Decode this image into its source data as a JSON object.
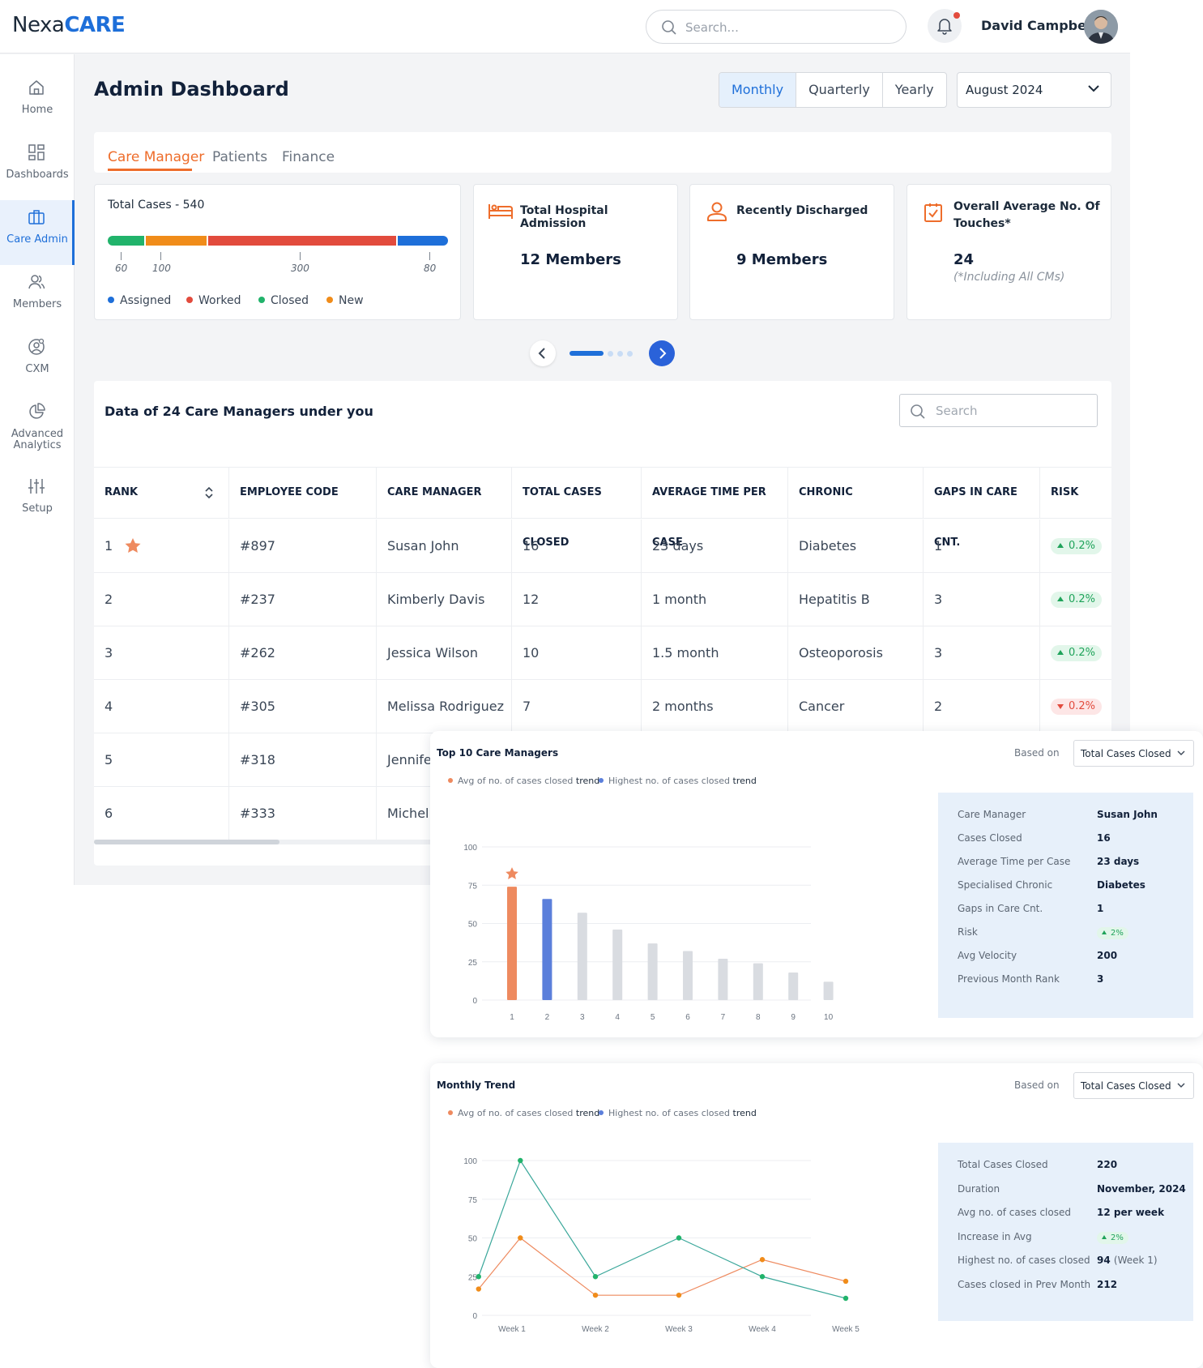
{
  "brand": {
    "part1": "Nexa",
    "part2": "CARE",
    "accent": "#1e6fd9"
  },
  "header": {
    "search_placeholder": "Search...",
    "user_name": "David Campbell"
  },
  "sidebar": {
    "items": [
      {
        "label": "Home",
        "icon": "home-icon"
      },
      {
        "label": "Dashboards",
        "icon": "dashboards-icon"
      },
      {
        "label": "Care Admin",
        "icon": "briefcase-icon",
        "active": true
      },
      {
        "label": "Members",
        "icon": "members-icon"
      },
      {
        "label": "CXM",
        "icon": "cxm-icon"
      },
      {
        "label": "Advanced Analytics",
        "icon": "pie-chart-icon"
      },
      {
        "label": "Setup",
        "icon": "sliders-icon"
      }
    ]
  },
  "main": {
    "title": "Admin Dashboard",
    "period_options": [
      "Monthly",
      "Quarterly",
      "Yearly"
    ],
    "period_selected": "Monthly",
    "month": "August 2024",
    "tabs": [
      "Care Manager",
      "Patients",
      "Finance"
    ],
    "active_tab": "Care Manager"
  },
  "cards": {
    "total_cases": {
      "title": "Total Cases - 540",
      "segments": [
        {
          "name": "Closed",
          "value": 60,
          "color": "#21b36b"
        },
        {
          "name": "New",
          "value": 100,
          "color": "#f08c1a"
        },
        {
          "name": "Worked",
          "value": 300,
          "color": "#e24b3d"
        },
        {
          "name": "Assigned",
          "value": 80,
          "color": "#1e6fd9"
        }
      ],
      "tick_labels": [
        "60",
        "100",
        "300",
        "80"
      ],
      "legend": [
        {
          "label": "Assigned",
          "color": "#1e6fd9"
        },
        {
          "label": "Worked",
          "color": "#e24b3d"
        },
        {
          "label": "Closed",
          "color": "#21b36b"
        },
        {
          "label": "New",
          "color": "#f08c1a"
        }
      ]
    },
    "hospital": {
      "title": "Total Hospital Admission",
      "value": "12 Members"
    },
    "discharged": {
      "title": "Recently Discharged",
      "value": "9 Members"
    },
    "touches": {
      "title_line1": "Overall Average  No. Of",
      "title_line2": "Touches*",
      "value": "24",
      "note": "(*Including All CMs)"
    }
  },
  "pager": {
    "pages": 4,
    "current": 1
  },
  "table": {
    "title": "Data of 24 Care Managers under you",
    "search_placeholder": "Search",
    "columns": [
      "RANK",
      "EMPLOYEE CODE",
      "CARE MANAGER",
      "TOTAL CASES CLOSED",
      "AVERAGE TIME PER CASE",
      "CHRONIC",
      "GAPS IN CARE CNT.",
      "RISK"
    ],
    "rows": [
      {
        "rank": "1",
        "code": "#897",
        "name": "Susan John",
        "closed": "16",
        "avg": "23 days",
        "chronic": "Diabetes",
        "gaps": "1",
        "risk": "0.2%",
        "trend": "up",
        "starred": true
      },
      {
        "rank": "2",
        "code": "#237",
        "name": "Kimberly Davis",
        "closed": "12",
        "avg": "1 month",
        "chronic": "Hepatitis B",
        "gaps": "3",
        "risk": "0.2%",
        "trend": "up"
      },
      {
        "rank": "3",
        "code": "#262",
        "name": "Jessica Wilson",
        "closed": "10",
        "avg": "1.5 month",
        "chronic": "Osteoporosis",
        "gaps": "3",
        "risk": "0.2%",
        "trend": "up"
      },
      {
        "rank": "4",
        "code": "#305",
        "name": "Melissa Rodriguez",
        "closed": "7",
        "avg": "2 months",
        "chronic": "Cancer",
        "gaps": "2",
        "risk": "0.2%",
        "trend": "down"
      },
      {
        "rank": "5",
        "code": "#318",
        "name": "Jennife",
        "closed": "",
        "avg": "",
        "chronic": "",
        "gaps": "",
        "risk": "",
        "trend": ""
      },
      {
        "rank": "6",
        "code": "#333",
        "name": "Michel",
        "closed": "",
        "avg": "",
        "chronic": "",
        "gaps": "",
        "risk": "",
        "trend": ""
      }
    ]
  },
  "top10": {
    "title": "Top 10 Care Managers",
    "based_on_label": "Based on",
    "based_on_value": "Total Cases Closed",
    "legend": [
      {
        "prefix": "Avg of no. of cases closed",
        "suffix": "trend",
        "color": "#ee8a5f"
      },
      {
        "prefix": "Highest no. of cases closed",
        "suffix": "trend",
        "color": "#5b7fdb"
      }
    ],
    "info": [
      {
        "k": "Care Manager",
        "v": "Susan John"
      },
      {
        "k": "Cases Closed",
        "v": "16"
      },
      {
        "k": "Average Time per Case",
        "v": "23 days"
      },
      {
        "k": "Specialised Chronic",
        "v": "Diabetes"
      },
      {
        "k": "Gaps in Care Cnt.",
        "v": "1"
      },
      {
        "k": "Risk",
        "v": "2%",
        "badge": true
      },
      {
        "k": "Avg Velocity",
        "v": "200"
      },
      {
        "k": "Previous Month Rank",
        "v": "3"
      }
    ]
  },
  "monthly_trend": {
    "title": "Monthly Trend",
    "based_on_label": "Based on",
    "based_on_value": "Total Cases Closed",
    "legend": [
      {
        "prefix": "Avg of no. of cases closed",
        "suffix": "trend",
        "color": "#ee8a5f"
      },
      {
        "prefix": "Highest no. of cases closed",
        "suffix": "trend",
        "color": "#5b7fdb"
      }
    ],
    "info": [
      {
        "k": "Total Cases Closed",
        "v": "220"
      },
      {
        "k": "Duration",
        "v": "November, 2024"
      },
      {
        "k": "Avg no. of cases closed",
        "v": "12 per week"
      },
      {
        "k": "Increase in Avg",
        "v": "2%",
        "badge": true
      },
      {
        "k": "Highest no. of cases closed",
        "v": "94",
        "extra": "(Week 1)"
      },
      {
        "k": "Cases closed in Prev Month",
        "v": "212"
      }
    ]
  },
  "chart_data": [
    {
      "type": "bar",
      "title": "Top 10 Care Managers",
      "categories": [
        "1",
        "2",
        "3",
        "4",
        "5",
        "6",
        "7",
        "8",
        "9",
        "10"
      ],
      "values": [
        74,
        66,
        57,
        46,
        37,
        32,
        27,
        24,
        18,
        12
      ],
      "bar_colors": [
        "#ee8a5f",
        "#5b7fdb",
        "#d9dce1",
        "#d9dce1",
        "#d9dce1",
        "#d9dce1",
        "#d9dce1",
        "#d9dce1",
        "#d9dce1",
        "#d9dce1"
      ],
      "starred_index": 0,
      "ylim": [
        0,
        100
      ],
      "yticks": [
        0,
        25,
        50,
        75,
        100
      ],
      "grid": true
    },
    {
      "type": "line",
      "title": "Monthly Trend",
      "categories": [
        "Week 1",
        "Week 2",
        "Week 3",
        "Week 4",
        "Week 5"
      ],
      "x": [
        0.6,
        1,
        2,
        3,
        4,
        5
      ],
      "series": [
        {
          "color": "#ee8a5f",
          "values": [
            17,
            50,
            13,
            13,
            36,
            22
          ],
          "x": [
            0.6,
            1.1,
            2,
            3,
            4,
            5
          ]
        },
        {
          "color": "#3aa79a",
          "values": [
            25,
            100,
            25,
            50,
            25,
            11
          ],
          "x": [
            0.6,
            1.1,
            2,
            3,
            4,
            5
          ]
        }
      ],
      "ylim": [
        0,
        100
      ],
      "yticks": [
        0,
        25,
        50,
        75,
        100
      ],
      "grid": true
    }
  ]
}
